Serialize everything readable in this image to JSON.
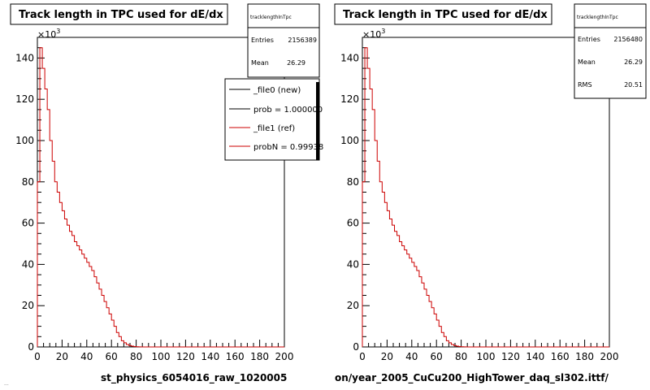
{
  "left": {
    "title": "Track length in TPC used for dE/dx",
    "multiplier": "×10",
    "multiplier_exp": "3",
    "filename": "st_physics_6054016_raw_1020005",
    "stats": {
      "name": "tracklengthInTpc",
      "entries_label": "Entries",
      "entries": "2156389",
      "mean_label": "Mean",
      "mean": "26.29"
    },
    "legend": [
      {
        "label": "_file0 (new)",
        "color": "#000000"
      },
      {
        "label": "prob = 1.000000",
        "color": "#000000"
      },
      {
        "label": "_file1 (ref)",
        "color": "#cc0000"
      },
      {
        "label": "probN = 0.99938",
        "color": "#cc0000"
      }
    ]
  },
  "right": {
    "title": "Track length in TPC used for dE/dx",
    "multiplier": "×10",
    "multiplier_exp": "3",
    "filename": "on/year_2005_CuCu200_HighTower_daq_sl302.ittf/",
    "stats": {
      "name": "tracklengthInTpc",
      "entries_label": "Entries",
      "entries": "2156480",
      "mean_label": "Mean",
      "mean": "26.29",
      "rms_label": "RMS",
      "rms": "20.51"
    }
  },
  "corner_note": "...",
  "chart_data": [
    {
      "type": "bar",
      "title": "Track length in TPC used for dE/dx",
      "xlim": [
        0,
        200
      ],
      "ylim": [
        0,
        150
      ],
      "x_ticks": [
        0,
        20,
        40,
        60,
        80,
        100,
        120,
        140,
        160,
        180,
        200
      ],
      "y_ticks": [
        0,
        20,
        40,
        60,
        80,
        100,
        120,
        140
      ],
      "y_unit_multiplier": 1000,
      "bin_width": 2,
      "bin_values": [
        80,
        145,
        135,
        125,
        115,
        100,
        90,
        80,
        75,
        70,
        66,
        62,
        59,
        56,
        54,
        51,
        49,
        47,
        45,
        43,
        41,
        39,
        37,
        34,
        31,
        28,
        25,
        22,
        19,
        16,
        13,
        10,
        7,
        5,
        3,
        2,
        1.2,
        0.7,
        0.4,
        0.2,
        0.1,
        0.05
      ]
    },
    {
      "type": "bar",
      "title": "Track length in TPC used for dE/dx",
      "xlim": [
        0,
        200
      ],
      "ylim": [
        0,
        150
      ],
      "x_ticks": [
        0,
        20,
        40,
        60,
        80,
        100,
        120,
        140,
        160,
        180,
        200
      ],
      "y_ticks": [
        0,
        20,
        40,
        60,
        80,
        100,
        120,
        140
      ],
      "y_unit_multiplier": 1000,
      "bin_width": 2,
      "bin_values": [
        80,
        145,
        135,
        125,
        115,
        100,
        90,
        80,
        75,
        70,
        66,
        62,
        59,
        56,
        54,
        51,
        49,
        47,
        45,
        43,
        41,
        39,
        37,
        34,
        31,
        28,
        25,
        22,
        19,
        16,
        13,
        10,
        7,
        5,
        3,
        2,
        1.2,
        0.7,
        0.4,
        0.2,
        0.1,
        0.05
      ]
    }
  ]
}
